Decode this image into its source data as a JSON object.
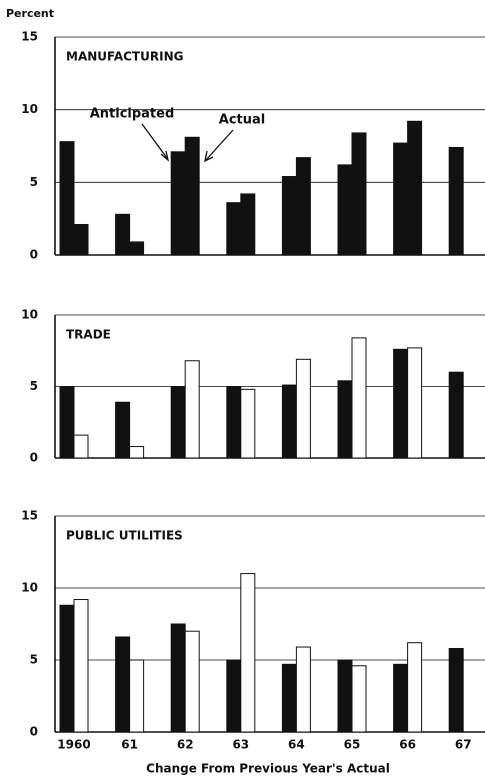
{
  "y_axis_label": "Percent",
  "x_axis_label": "Change From Previous Year's Actual",
  "chart_data": [
    {
      "type": "bar",
      "title": "MANUFACTURING",
      "ylim": [
        0,
        15
      ],
      "yticks": [
        0,
        5,
        10,
        15
      ],
      "grid": true,
      "series": [
        {
          "name": "Anticipated",
          "color": "#111111",
          "values": [
            7.8,
            2.8,
            7.1,
            3.6,
            5.4,
            6.2,
            7.7,
            7.4
          ]
        },
        {
          "name": "Actual",
          "color": "#111111",
          "values": [
            2.1,
            0.9,
            8.1,
            4.2,
            6.7,
            8.4,
            9.2,
            null
          ]
        }
      ]
    },
    {
      "type": "bar",
      "title": "TRADE",
      "ylim": [
        0,
        10
      ],
      "yticks": [
        0,
        5,
        10
      ],
      "grid": true,
      "series": [
        {
          "color": "#111111",
          "values": [
            5.0,
            3.9,
            5.0,
            5.0,
            5.1,
            5.4,
            7.6,
            6.0
          ]
        },
        {
          "color": "#ffffff",
          "values": [
            1.6,
            0.8,
            6.8,
            4.8,
            6.9,
            8.4,
            7.7,
            null
          ]
        }
      ]
    },
    {
      "type": "bar",
      "title": "PUBLIC UTILITIES",
      "categories": [
        "1960",
        "61",
        "62",
        "63",
        "64",
        "65",
        "66",
        "67"
      ],
      "ylim": [
        0,
        15
      ],
      "yticks": [
        0,
        5,
        10,
        15
      ],
      "grid": true,
      "series": [
        {
          "color": "#111111",
          "values": [
            8.8,
            6.6,
            7.5,
            5.0,
            4.7,
            5.0,
            4.7,
            5.8
          ]
        },
        {
          "color": "#ffffff",
          "values": [
            9.2,
            5.0,
            7.0,
            11.0,
            5.9,
            4.6,
            6.2,
            null
          ]
        }
      ]
    }
  ]
}
